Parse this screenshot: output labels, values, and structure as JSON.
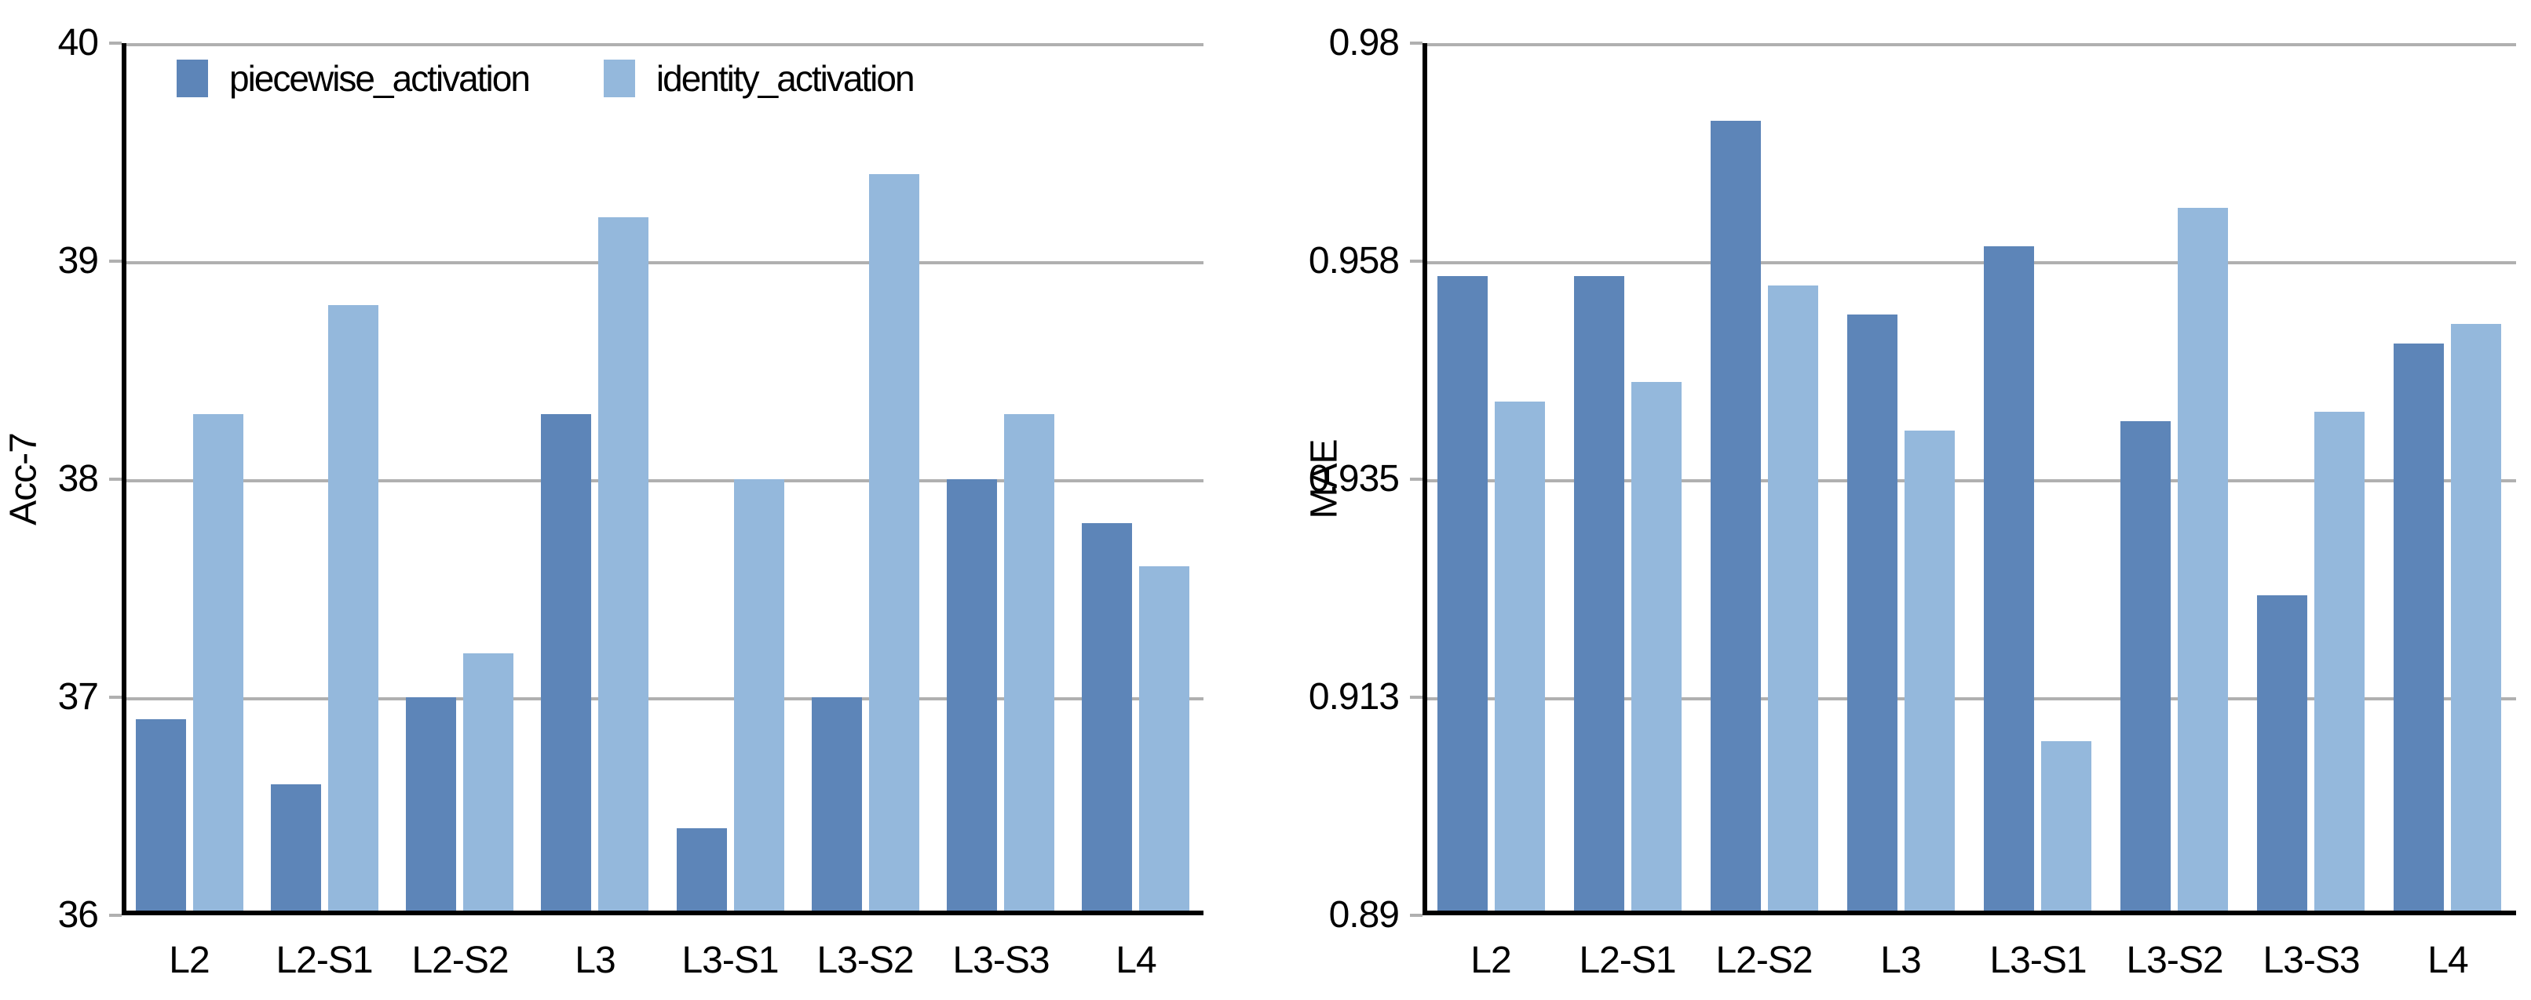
{
  "figure": {
    "background": "#ffffff",
    "gridline_color": "#b0b0b0",
    "axis_color": "#000000",
    "bar_colors": {
      "piecewise_activation": "#5d85b8",
      "identity_activation": "#94b8dc"
    },
    "legend": {
      "position": "top-left-inside-first-chart",
      "items": [
        {
          "label": "piecewise_activation",
          "color": "#5d85b8"
        },
        {
          "label": "identity_activation",
          "color": "#94b8dc"
        }
      ]
    }
  },
  "chart_data": [
    {
      "type": "bar",
      "title": "",
      "xlabel": "",
      "ylabel": "Acc-7",
      "categories": [
        "L2",
        "L2-S1",
        "L2-S2",
        "L3",
        "L3-S1",
        "L3-S2",
        "L3-S3",
        "L4"
      ],
      "series": [
        {
          "name": "piecewise_activation",
          "color": "#5d85b8",
          "values": [
            36.9,
            36.6,
            37.0,
            38.3,
            36.4,
            37.0,
            38.0,
            37.8
          ]
        },
        {
          "name": "identity_activation",
          "color": "#94b8dc",
          "values": [
            38.3,
            38.8,
            37.2,
            39.2,
            38.0,
            39.4,
            38.3,
            37.6
          ]
        }
      ],
      "ylim": [
        36,
        40
      ],
      "yticks": [
        36,
        37,
        38,
        39,
        40
      ],
      "ytick_labels": [
        "36",
        "37",
        "38",
        "39",
        "40"
      ],
      "grid": true,
      "legend": true
    },
    {
      "type": "bar",
      "title": "",
      "xlabel": "",
      "ylabel": "MAE",
      "categories": [
        "L2",
        "L2-S1",
        "L2-S2",
        "L3",
        "L3-S1",
        "L3-S2",
        "L3-S3",
        "L4"
      ],
      "series": [
        {
          "name": "piecewise_activation",
          "color": "#5d85b8",
          "values": [
            0.956,
            0.956,
            0.972,
            0.952,
            0.959,
            0.941,
            0.923,
            0.949
          ]
        },
        {
          "name": "identity_activation",
          "color": "#94b8dc",
          "values": [
            0.943,
            0.945,
            0.955,
            0.94,
            0.908,
            0.963,
            0.942,
            0.951
          ]
        }
      ],
      "ylim": [
        0.89,
        0.98
      ],
      "yticks": [
        0.89,
        0.913,
        0.935,
        0.958,
        0.98
      ],
      "ytick_labels": [
        "0.89",
        "0.913",
        "0.935",
        "0.958",
        "0.98"
      ],
      "grid": true,
      "legend": false
    }
  ]
}
